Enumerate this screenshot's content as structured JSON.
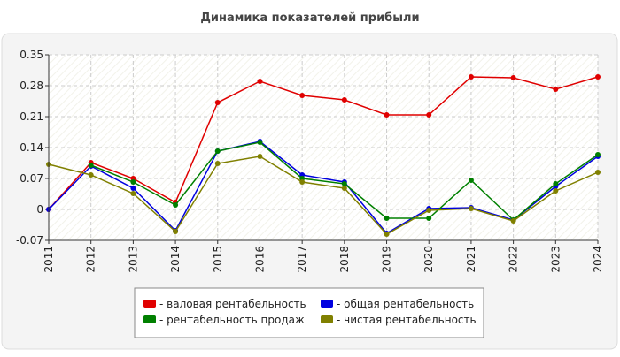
{
  "chart_data": {
    "type": "line",
    "title": "Динамика показателей прибыли",
    "categories": [
      "2011",
      "2012",
      "2013",
      "2014",
      "2015",
      "2016",
      "2017",
      "2018",
      "2019",
      "2020",
      "2021",
      "2022",
      "2023",
      "2024"
    ],
    "series": [
      {
        "name": "- валовая рентабельность",
        "color": "#e00000",
        "values": [
          0,
          0.106,
          0.07,
          0.016,
          0.242,
          0.29,
          0.258,
          0.248,
          0.214,
          0.214,
          0.3,
          0.298,
          0.272,
          0.3
        ]
      },
      {
        "name": "- общая рентабельность",
        "color": "#0000e0",
        "values": [
          0,
          0.098,
          0.048,
          -0.048,
          0.132,
          0.154,
          0.078,
          0.062,
          -0.054,
          0.002,
          0.004,
          -0.024,
          0.052,
          0.12
        ]
      },
      {
        "name": "- рентабельность продаж",
        "color": "#008000",
        "values": [
          null,
          0.1,
          0.062,
          0.01,
          0.132,
          0.152,
          0.07,
          0.058,
          -0.02,
          -0.02,
          0.066,
          -0.024,
          0.058,
          0.124
        ]
      },
      {
        "name": "- чистая рентабельность",
        "color": "#808000",
        "values": [
          0.102,
          0.078,
          0.036,
          -0.05,
          0.104,
          0.12,
          0.062,
          0.048,
          -0.056,
          -0.002,
          0.002,
          -0.026,
          0.042,
          0.084
        ]
      }
    ],
    "ylim": [
      -0.07,
      0.35
    ],
    "yticks": [
      0.35,
      0.28,
      0.21,
      0.14,
      0.07,
      0,
      -0.07
    ],
    "grid": true
  }
}
